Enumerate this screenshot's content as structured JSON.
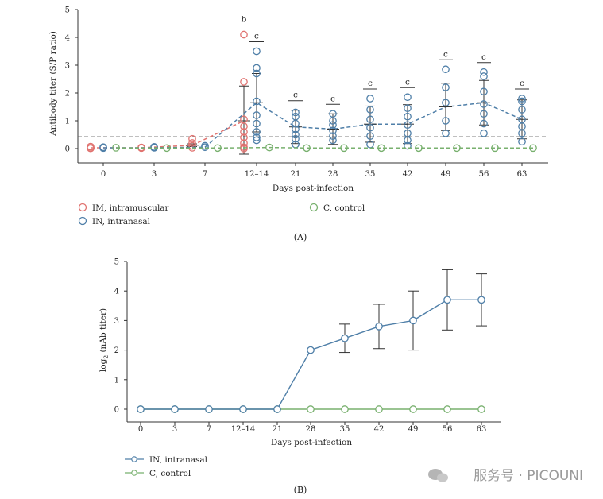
{
  "chart_data": [
    {
      "type": "scatter",
      "panel_label": "(A)",
      "xlabel": "Days post-infection",
      "ylabel": "Antibody titer (S/P ratio)",
      "ylim": [
        0,
        5
      ],
      "yticks": [
        0,
        1,
        2,
        3,
        4,
        5
      ],
      "categories": [
        "0",
        "3",
        "7",
        "12–14",
        "21",
        "28",
        "35",
        "42",
        "49",
        "56",
        "63"
      ],
      "cutoff": 0.42,
      "legend_placement": "bottom",
      "series": [
        {
          "name": "IM, intramuscular",
          "color": "#e0726f",
          "means": [
            0.03,
            0.03,
            0.12,
            1.0
          ],
          "sd": [
            0,
            0,
            0.05,
            1.25
          ],
          "points": [
            [
              0.03,
              0.07,
              0.01
            ],
            [
              0.02,
              0.04
            ],
            [
              0.35,
              0.2,
              0.1,
              0.03
            ],
            [
              4.1,
              2.4,
              1.05,
              0.8,
              0.6,
              0.4,
              0.2,
              0.05,
              0.0
            ]
          ]
        },
        {
          "name": "IN, intranasal",
          "color": "#4f7fa8",
          "means": [
            0.03,
            0.03,
            0.05,
            1.65,
            0.78,
            0.7,
            0.88,
            0.88,
            1.5,
            1.65,
            1.05
          ],
          "sd": [
            0,
            0,
            0,
            1.05,
            0.6,
            0.55,
            0.65,
            0.7,
            0.85,
            0.8,
            0.7
          ],
          "points": [
            [
              0.05,
              0.02
            ],
            [
              0.03,
              0.06
            ],
            [
              0.05,
              0.1
            ],
            [
              3.5,
              2.9,
              2.7,
              1.7,
              1.2,
              0.9,
              0.6,
              0.4,
              0.3
            ],
            [
              1.3,
              1.15,
              0.9,
              0.7,
              0.5,
              0.35,
              0.15
            ],
            [
              1.25,
              1.0,
              0.85,
              0.65,
              0.45,
              0.3
            ],
            [
              1.8,
              1.4,
              1.05,
              0.75,
              0.45,
              0.15
            ],
            [
              1.85,
              1.45,
              1.15,
              0.85,
              0.55,
              0.3,
              0.1
            ],
            [
              2.85,
              2.2,
              1.65,
              1.0,
              0.55
            ],
            [
              2.75,
              2.6,
              2.05,
              1.6,
              1.25,
              0.9,
              0.55
            ],
            [
              1.8,
              1.7,
              1.4,
              1.05,
              0.8,
              0.55,
              0.25
            ]
          ],
          "significance": [
            "",
            "",
            "",
            "c",
            "c",
            "c",
            "c",
            "c",
            "c",
            "c",
            "c"
          ]
        },
        {
          "name": "C, control",
          "color": "#78b06e",
          "means": [
            0.02,
            0.02,
            0.02,
            0.04,
            0.02,
            0.02,
            0.02,
            0.02,
            0.02,
            0.02,
            0.02
          ],
          "points": [
            [
              0.03
            ],
            [
              0.02
            ],
            [
              0.02
            ],
            [
              0.04
            ],
            [
              0.02
            ],
            [
              0.02
            ],
            [
              0.02
            ],
            [
              0.02
            ],
            [
              0.02
            ],
            [
              0.02
            ],
            [
              0.02
            ]
          ]
        }
      ],
      "im_significance": [
        "",
        "",
        "",
        "b"
      ]
    },
    {
      "type": "line",
      "panel_label": "(B)",
      "xlabel": "Days post-infection",
      "ylabel_main": "log",
      "ylabel_sub": "2",
      "ylabel_rest": " (nAb titer)",
      "ylim": [
        0,
        5
      ],
      "yticks": [
        0,
        1,
        2,
        3,
        4,
        5
      ],
      "categories": [
        "0",
        "3",
        "7",
        "12–14",
        "21",
        "28",
        "35",
        "42",
        "49",
        "56",
        "63"
      ],
      "legend_placement": "bottom-left",
      "series": [
        {
          "name": "IN, intranasal",
          "color": "#4f7fa8",
          "values": [
            0,
            0,
            0,
            0,
            0,
            2.0,
            2.4,
            2.8,
            3.0,
            3.7,
            3.7
          ],
          "err": [
            0,
            0,
            0,
            0,
            0,
            0,
            0.48,
            0.75,
            1.0,
            1.02,
            0.88
          ]
        },
        {
          "name": "C, control",
          "color": "#78b06e",
          "values": [
            0,
            0,
            0,
            0,
            0,
            0,
            0,
            0,
            0,
            0,
            0
          ]
        }
      ]
    }
  ],
  "watermark": "服务号 · PICOUNI"
}
